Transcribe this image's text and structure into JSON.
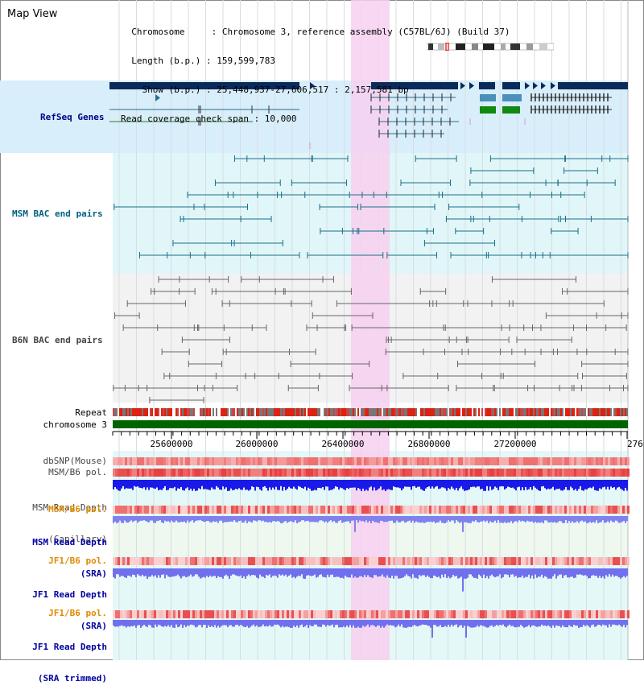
{
  "header": {
    "title": "Map View",
    "info_lines": [
      "  Chromosome     : Chromosome 3, reference assembly (C57BL/6J) (Build 37)",
      "  Length (b.p.) : 159,599,783",
      "    Show (b.p.) : 25,448,937-27,606,517 : 2,157,581 bp",
      "Read coverage check span : 10,000"
    ]
  },
  "axis": {
    "ticks": [
      "25600000",
      "26000000",
      "26400000",
      "26800000",
      "27200000",
      "276"
    ]
  },
  "track_labels": {
    "refseq": "RefSeq Genes",
    "msm_bac": "MSM BAC end pairs",
    "b6n_bac": "B6N BAC end pairs",
    "repeat": "Repeat",
    "chromosome": "chromosome 3",
    "dbsnp": "dbSNP(Mouse)",
    "msm_b6_pol_1": "MSM/B6 pol.",
    "msm_read_depth_cap_1": "MSM Read Depth",
    "msm_read_depth_cap_2": "(Capillary)",
    "msm_b6_pol_2": "MSM/B6 pol.",
    "msm_read_depth_sra_1": "MSM Read Depth",
    "msm_read_depth_sra_2": "(SRA)",
    "jf1_b6_pol_1": "JF1/B6 pol.",
    "jf1_read_depth_sra_1": "JF1 Read Depth",
    "jf1_read_depth_sra_2": "(SRA)",
    "jf1_b6_pol_2": "JF1/B6 pol.",
    "jf1_read_depth_trim_1": "JF1 Read Depth",
    "jf1_read_depth_trim_2": "(SRA trimmed)"
  },
  "colors": {
    "refseq_label": "#00008b",
    "msm_label": "#006080",
    "b6n_label": "#444444",
    "orange_label": "#e08a00",
    "blue_label": "#0000a0",
    "highlight": "#f7d0f0",
    "refseq_bg": "#d8eefa",
    "msm_bg": "#e0f6f8",
    "b6n_bg": "#f2f2f2",
    "gene_dark": "#0a2a5a",
    "chromosome_bar": "#006400"
  }
}
